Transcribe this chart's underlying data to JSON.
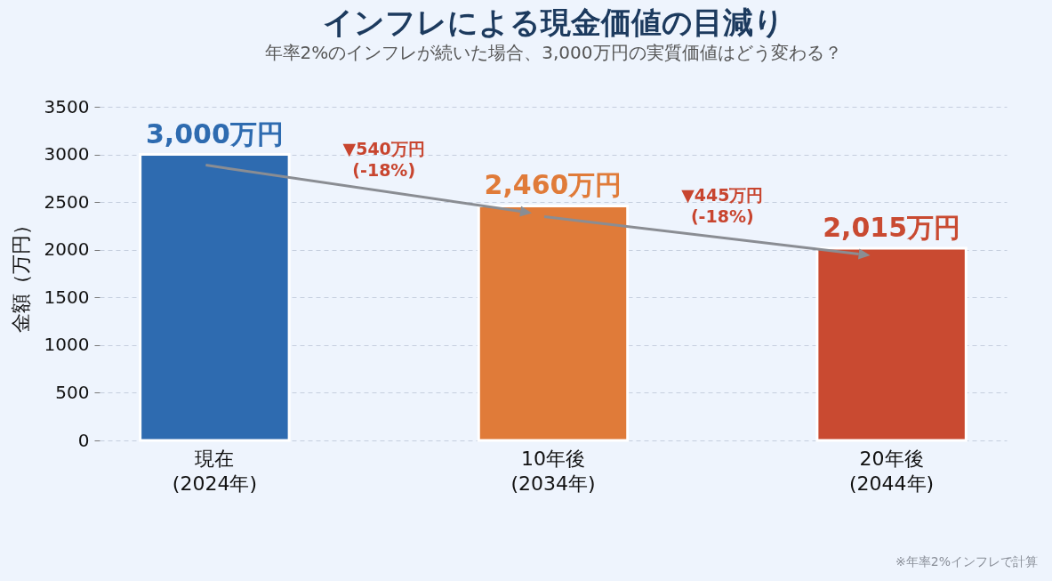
{
  "chart_data": {
    "type": "bar",
    "title": "インフレによる現金価値の目減り",
    "subtitle": "年率2%のインフレが続いた場合、3,000万円の実質価値はどう変わる？",
    "ylabel": "金額（万円）",
    "categories": [
      "現在\n(2024年)",
      "10年後\n(2034年)",
      "20年後\n(2044年)"
    ],
    "values": [
      3000,
      2460,
      2015
    ],
    "colors": [
      "#2e6bb0",
      "#e07b39",
      "#c94a31"
    ],
    "value_labels": [
      "3,000万円",
      "2,460万円",
      "2,015万円"
    ],
    "ylim": [
      0,
      3500
    ],
    "yticks": [
      0,
      500,
      1000,
      1500,
      2000,
      2500,
      3000,
      3500
    ],
    "grid": "y",
    "annotations": [
      "▼540万円\n(-18%)",
      "▼445万円\n(-18%)",
      "※年率2%インフレで計算"
    ]
  }
}
